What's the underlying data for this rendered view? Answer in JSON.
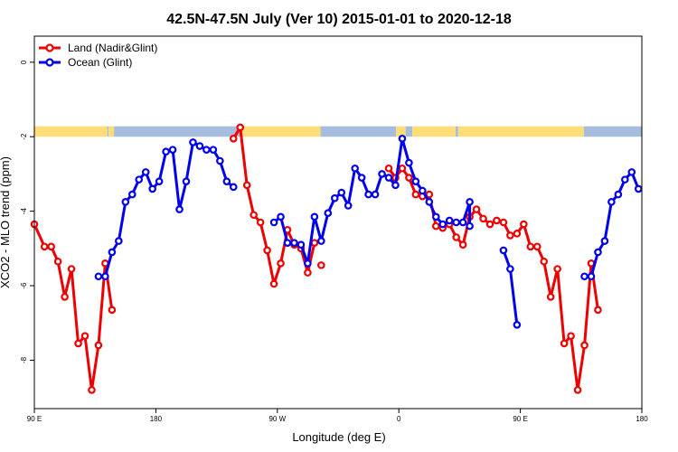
{
  "chart_data": {
    "type": "line",
    "title": "42.5N-47.5N July (Ver 10)   2015-01-01 to 2020-12-18",
    "xlabel": "Longitude (deg E)",
    "ylabel": "XCO2 - MLO trend (ppm)",
    "x_ticks": [
      {
        "value": 90,
        "label": "90 E"
      },
      {
        "value": 180,
        "label": "180"
      },
      {
        "value": 270,
        "label": "90 W"
      },
      {
        "value": 360,
        "label": "0"
      },
      {
        "value": 450,
        "label": "90 E"
      },
      {
        "value": 540,
        "label": "180"
      }
    ],
    "y_ticks": [
      {
        "value": 0,
        "label": "0"
      },
      {
        "value": -2,
        "label": "-2"
      },
      {
        "value": -4,
        "label": "-4"
      },
      {
        "value": -6,
        "label": "-6"
      },
      {
        "value": -8,
        "label": "-8"
      }
    ],
    "xlim": [
      90,
      540
    ],
    "ylim": [
      -9.3,
      0.7
    ],
    "legend_position": "top-left",
    "land_ocean_strip": {
      "y_range": [
        -2.0,
        -1.72
      ],
      "land_color": "#ffdd77",
      "ocean_color": "#a8bcdd",
      "segments": [
        {
          "from": 90,
          "to": 144,
          "kind": "land"
        },
        {
          "from": 144,
          "to": 145,
          "kind": "ocean"
        },
        {
          "from": 145,
          "to": 149,
          "kind": "land"
        },
        {
          "from": 149,
          "to": 242,
          "kind": "ocean"
        },
        {
          "from": 242,
          "to": 302,
          "kind": "land"
        },
        {
          "from": 302,
          "to": 358,
          "kind": "ocean"
        },
        {
          "from": 358,
          "to": 365,
          "kind": "land"
        },
        {
          "from": 365,
          "to": 370,
          "kind": "ocean"
        },
        {
          "from": 370,
          "to": 402,
          "kind": "land"
        },
        {
          "from": 402,
          "to": 404,
          "kind": "ocean"
        },
        {
          "from": 404,
          "to": 497,
          "kind": "land"
        },
        {
          "from": 497,
          "to": 540,
          "kind": "ocean"
        }
      ]
    },
    "series": [
      {
        "name": "Land (Nadir&Glint)",
        "color": "#ee0000",
        "segments": [
          [
            [
              90,
              -4.35
            ],
            [
              97.5,
              -4.95
            ],
            [
              102.5,
              -4.95
            ],
            [
              107.5,
              -5.35
            ],
            [
              112.5,
              -6.3
            ],
            [
              117.5,
              -5.55
            ],
            [
              122.5,
              -7.55
            ],
            [
              127.5,
              -7.35
            ],
            [
              132.5,
              -8.8
            ],
            [
              137.5,
              -7.6
            ],
            [
              142.5,
              -5.4
            ],
            [
              147.5,
              -6.65
            ]
          ],
          [
            [
              237.5,
              -2.05
            ],
            [
              242.5,
              -1.75
            ],
            [
              247.5,
              -3.3
            ],
            [
              252.5,
              -4.1
            ],
            [
              257.5,
              -4.3
            ],
            [
              262.5,
              -5.05
            ],
            [
              267.5,
              -5.95
            ],
            [
              272.5,
              -5.4
            ],
            [
              277.5,
              -4.5
            ],
            [
              282.5,
              -4.9
            ],
            [
              287.5,
              -5.0
            ],
            [
              292.5,
              -5.65
            ],
            [
              297.5,
              -4.85
            ]
          ],
          [
            [
              302.5,
              -5.45
            ]
          ],
          [
            [
              352.5,
              -2.85
            ],
            [
              357.5,
              -3.1
            ],
            [
              362.5,
              -2.85
            ],
            [
              367.5,
              -3.1
            ],
            [
              372.5,
              -3.55
            ],
            [
              377.5,
              -3.6
            ],
            [
              382.5,
              -3.55
            ],
            [
              387.5,
              -4.4
            ],
            [
              392.5,
              -4.45
            ],
            [
              397.5,
              -4.35
            ],
            [
              402.5,
              -4.7
            ],
            [
              407.5,
              -4.9
            ],
            [
              412.5,
              -4.15
            ],
            [
              417.5,
              -3.95
            ],
            [
              422.5,
              -4.2
            ],
            [
              427.5,
              -4.35
            ],
            [
              432.5,
              -4.25
            ],
            [
              437.5,
              -4.3
            ],
            [
              442.5,
              -4.65
            ],
            [
              447.5,
              -4.6
            ],
            [
              452.5,
              -4.35
            ],
            [
              457.5,
              -4.95
            ],
            [
              462.5,
              -4.95
            ],
            [
              467.5,
              -5.35
            ],
            [
              472.5,
              -6.3
            ],
            [
              477.5,
              -5.55
            ],
            [
              482.5,
              -7.55
            ],
            [
              487.5,
              -7.35
            ],
            [
              492.5,
              -8.8
            ],
            [
              497.5,
              -7.6
            ],
            [
              502.5,
              -5.4
            ],
            [
              507.5,
              -6.65
            ]
          ]
        ]
      },
      {
        "name": "Ocean (Glint)",
        "color": "#0000ee",
        "segments": [
          [
            [
              137.5,
              -5.75
            ],
            [
              142.5,
              -5.75
            ],
            [
              147.5,
              -5.1
            ],
            [
              152.5,
              -4.8
            ],
            [
              157.5,
              -3.75
            ],
            [
              162.5,
              -3.55
            ],
            [
              167.5,
              -3.15
            ],
            [
              172.5,
              -2.95
            ],
            [
              177.5,
              -3.4
            ],
            [
              182.5,
              -3.2
            ],
            [
              187.5,
              -2.4
            ],
            [
              192.5,
              -2.35
            ],
            [
              197.5,
              -3.95
            ],
            [
              202.5,
              -3.2
            ],
            [
              207.5,
              -2.15
            ],
            [
              212.5,
              -2.25
            ],
            [
              217.5,
              -2.35
            ],
            [
              222.5,
              -2.35
            ],
            [
              227.5,
              -2.65
            ],
            [
              232.5,
              -3.2
            ],
            [
              237.5,
              -3.35
            ]
          ],
          [
            [
              267.5,
              -4.3
            ],
            [
              272.5,
              -4.15
            ],
            [
              277.5,
              -4.85
            ],
            [
              282.5,
              -4.85
            ],
            [
              287.5,
              -4.9
            ],
            [
              292.5,
              -5.4
            ],
            [
              297.5,
              -4.15
            ],
            [
              302.5,
              -4.8
            ],
            [
              307.5,
              -4.05
            ],
            [
              312.5,
              -3.65
            ],
            [
              317.5,
              -3.5
            ],
            [
              322.5,
              -3.85
            ],
            [
              327.5,
              -2.85
            ],
            [
              332.5,
              -3.1
            ],
            [
              337.5,
              -3.55
            ],
            [
              342.5,
              -3.55
            ],
            [
              347.5,
              -3.0
            ],
            [
              352.5,
              -3.1
            ],
            [
              357.5,
              -3.3
            ],
            [
              362.5,
              -2.05
            ],
            [
              367.5,
              -2.7
            ],
            [
              372.5,
              -3.2
            ],
            [
              377.5,
              -3.45
            ],
            [
              382.5,
              -3.75
            ],
            [
              387.5,
              -4.15
            ],
            [
              392.5,
              -4.35
            ],
            [
              397.5,
              -4.25
            ],
            [
              402.5,
              -4.3
            ],
            [
              407.5,
              -4.3
            ],
            [
              412.5,
              -3.75
            ],
            [
              412.5,
              -4.4
            ]
          ],
          [
            [
              437.5,
              -5.05
            ],
            [
              442.5,
              -5.55
            ],
            [
              447.5,
              -7.05
            ]
          ],
          [
            [
              497.5,
              -5.75
            ],
            [
              502.5,
              -5.75
            ],
            [
              507.5,
              -5.1
            ],
            [
              512.5,
              -4.8
            ],
            [
              517.5,
              -3.75
            ],
            [
              522.5,
              -3.55
            ],
            [
              527.5,
              -3.15
            ],
            [
              532.5,
              -2.95
            ],
            [
              537.5,
              -3.4
            ]
          ]
        ]
      }
    ]
  }
}
